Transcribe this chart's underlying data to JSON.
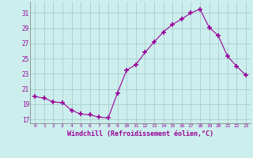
{
  "x": [
    0,
    1,
    2,
    3,
    4,
    5,
    6,
    7,
    8,
    9,
    10,
    11,
    12,
    13,
    14,
    15,
    16,
    17,
    18,
    19,
    20,
    21,
    22,
    23
  ],
  "y": [
    20.0,
    19.8,
    19.3,
    19.2,
    18.2,
    17.7,
    17.6,
    17.3,
    17.2,
    20.5,
    23.5,
    24.2,
    25.8,
    27.2,
    28.5,
    29.5,
    30.2,
    31.0,
    31.5,
    29.1,
    28.0,
    25.3,
    24.0,
    22.8
  ],
  "line_color": "#990099",
  "marker": "+",
  "marker_color": "#990099",
  "bg_color": "#cceeed",
  "grid_color": "#aacccc",
  "xlabel": "Windchill (Refroidissement éolien,°C)",
  "xlabel_color": "#990099",
  "tick_color": "#990099",
  "ylim": [
    16.5,
    32.5
  ],
  "yticks": [
    17,
    19,
    21,
    23,
    25,
    27,
    29,
    31
  ],
  "xticks": [
    0,
    1,
    2,
    3,
    4,
    5,
    6,
    7,
    8,
    9,
    10,
    11,
    12,
    13,
    14,
    15,
    16,
    17,
    18,
    19,
    20,
    21,
    22,
    23
  ]
}
